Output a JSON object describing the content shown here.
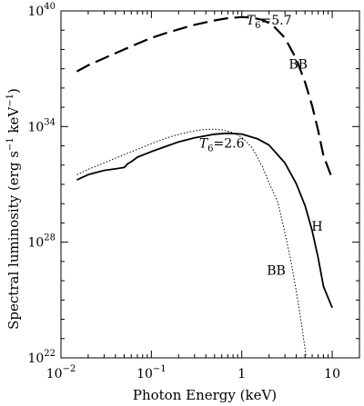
{
  "chart_data": {
    "type": "line",
    "title": "",
    "xlabel": "Photon Energy (keV)",
    "ylabel_parts": {
      "main": "Spectral luminosity (erg s",
      "exp1": "−1",
      "mid": " keV",
      "exp2": "−1",
      "end": ")"
    },
    "x_scale": "log",
    "y_scale": "log",
    "xlim": [
      0.01,
      20
    ],
    "ylim": [
      1e+22,
      1e+40
    ],
    "x_ticks": [
      {
        "value": 0.01,
        "base": "10",
        "exp": "−2"
      },
      {
        "value": 0.1,
        "base": "10",
        "exp": "−1"
      },
      {
        "value": 1,
        "base": "1",
        "exp": ""
      },
      {
        "value": 10,
        "base": "10",
        "exp": ""
      }
    ],
    "y_ticks": [
      {
        "value": 1e+22,
        "base": "10",
        "exp": "22"
      },
      {
        "value": 1e+28,
        "base": "10",
        "exp": "28"
      },
      {
        "value": 1e+34,
        "base": "10",
        "exp": "34"
      },
      {
        "value": 1e+40,
        "base": "10",
        "exp": "40"
      }
    ],
    "grid": false,
    "series": [
      {
        "name": "BB",
        "style": "dashed",
        "x": [
          0.015,
          0.02,
          0.03,
          0.05,
          0.07,
          0.1,
          0.15,
          0.2,
          0.3,
          0.5,
          0.7,
          1.0,
          1.3,
          1.7,
          2.2,
          3.0,
          4.0,
          5.0,
          6.0,
          7.0,
          8.0,
          10.0
        ],
        "y": [
          7.3e+36,
          1.5e+37,
          3.5e+37,
          1e+38,
          2e+38,
          4e+38,
          7.5e+38,
          1.1e+39,
          1.9e+39,
          3.2e+39,
          4.2e+39,
          4.8e+39,
          4.5e+39,
          3.4e+39,
          1.8e+39,
          4e+38,
          3.3e+37,
          2e+36,
          1.2e+35,
          6e+33,
          3e+32,
          2e+31
        ]
      },
      {
        "name": "H",
        "style": "solid",
        "x": [
          0.015,
          0.02,
          0.03,
          0.04,
          0.05,
          0.055,
          0.06,
          0.07,
          0.1,
          0.15,
          0.2,
          0.3,
          0.5,
          0.7,
          1.0,
          1.5,
          2.0,
          3.0,
          4.0,
          5.0,
          6.0,
          7.0,
          8.0,
          10.0
        ],
        "y": [
          1.7e+31,
          3.2e+31,
          5.3e+31,
          6.4e+31,
          7.5e+31,
          1.2e+32,
          1.5e+32,
          2.6e+32,
          5e+32,
          1e+33,
          1.6e+33,
          2.6e+33,
          4e+33,
          4.5e+33,
          4.1e+33,
          2.3e+33,
          1.1e+33,
          1.3e+32,
          1.1e+31,
          8e+29,
          4e+28,
          1.5e+27,
          5e+25,
          4e+24
        ]
      },
      {
        "name": "BB",
        "style": "dotted",
        "x": [
          0.015,
          0.02,
          0.03,
          0.05,
          0.07,
          0.1,
          0.15,
          0.2,
          0.3,
          0.4,
          0.5,
          0.6,
          0.8,
          1.0,
          1.3,
          1.7,
          2.0,
          2.5,
          3.0,
          3.5,
          4.0,
          4.5,
          5.0,
          5.5
        ],
        "y": [
          3.2e+31,
          6e+31,
          1.3e+32,
          3.5e+32,
          6.5e+32,
          1.3e+33,
          2.6e+33,
          3.9e+33,
          6e+33,
          7.2e+33,
          7.3e+33,
          6.9e+33,
          4.8e+33,
          2.8e+33,
          8e+32,
          8e+31,
          1.2e+31,
          1.2e+30,
          3e+28,
          1e+27,
          3e+25,
          1e+24,
          3e+22,
          1e+21
        ]
      }
    ],
    "annotations": [
      {
        "label_italic": "T",
        "sub": "6",
        "rest": "=5.7",
        "x": 2.0,
        "y": 2e+39
      },
      {
        "label_italic": "",
        "sub": "",
        "rest": "BB",
        "x": 4.2,
        "y": 1e+37
      },
      {
        "label_italic": "T",
        "sub": "6",
        "rest": "=2.6",
        "x": 0.6,
        "y": 8e+32
      },
      {
        "label_italic": "",
        "sub": "",
        "rest": "H",
        "x": 6.8,
        "y": 4e+28
      },
      {
        "label_italic": "",
        "sub": "",
        "rest": "BB",
        "x": 2.4,
        "y": 2e+26
      }
    ]
  }
}
